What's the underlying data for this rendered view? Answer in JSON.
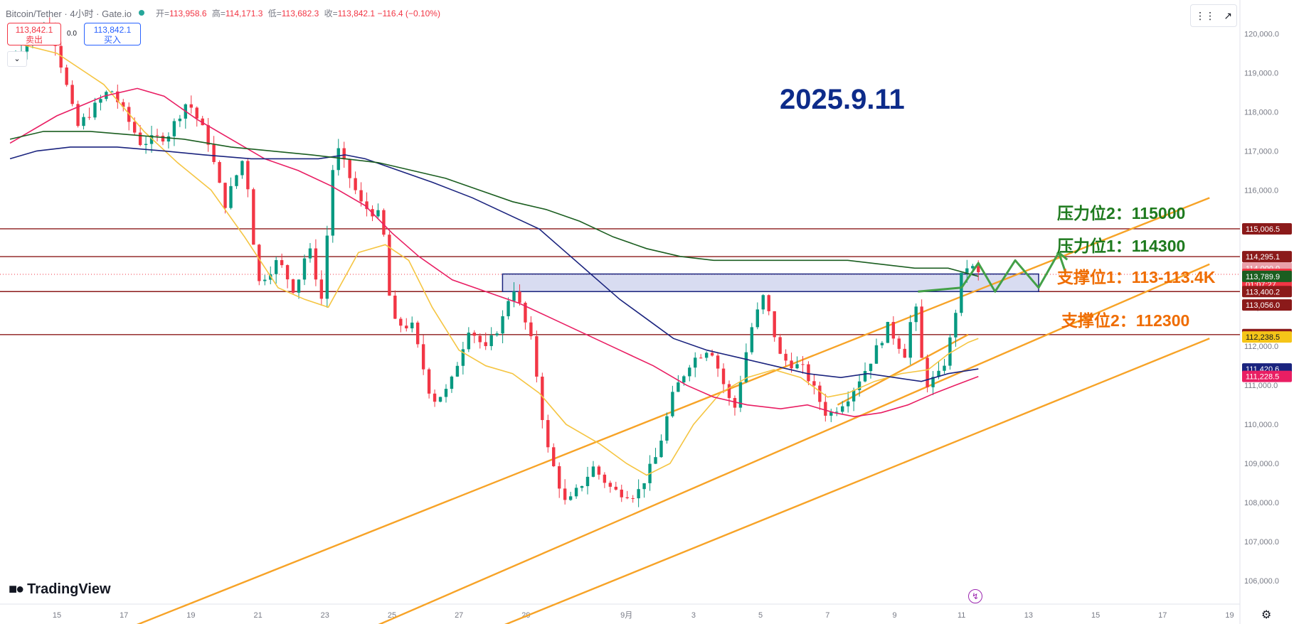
{
  "header": {
    "symbol": "Bitcoin/Tether · 4小时 · Gate.io",
    "open_label": "开=",
    "open": "113,958.6",
    "high_label": "高=",
    "high": "114,171.3",
    "low_label": "低=",
    "low": "113,682.3",
    "close_label": "收=",
    "close": "113,842.1",
    "change": "−116.4 (−0.10%)"
  },
  "trade": {
    "sell_price": "113,842.1",
    "sell_label": "卖出",
    "spread": "0.0",
    "buy_price": "113,842.1",
    "buy_label": "买入",
    "collapse_icon": "chevron-down-icon"
  },
  "toolbar": {
    "icons": [
      "indicator-drag-icon",
      "trend-arrow-icon"
    ]
  },
  "branding": {
    "logo_text": "TradingView"
  },
  "chart_data": {
    "type": "candlestick",
    "title": "2025.9.11",
    "y_axis": {
      "min": 105400,
      "max": 120500,
      "ticks": [
        "106,000.0",
        "107,000.0",
        "108,000.0",
        "109,000.0",
        "110,000.0",
        "111,000.0",
        "112,000.0",
        "113,000.0",
        "114,000.0",
        "115,000.0",
        "116,000.0",
        "117,000.0",
        "118,000.0",
        "119,000.0",
        "120,000.0"
      ]
    },
    "x_axis": {
      "labels": [
        {
          "text": "15",
          "day": 15
        },
        {
          "text": "17",
          "day": 17
        },
        {
          "text": "19",
          "day": 19
        },
        {
          "text": "21",
          "day": 21
        },
        {
          "text": "23",
          "day": 23
        },
        {
          "text": "25",
          "day": 25
        },
        {
          "text": "27",
          "day": 27
        },
        {
          "text": "29",
          "day": 29
        },
        {
          "text": "9月",
          "day": 32
        },
        {
          "text": "3",
          "day": 34
        },
        {
          "text": "5",
          "day": 36
        },
        {
          "text": "7",
          "day": 38
        },
        {
          "text": "9",
          "day": 40
        },
        {
          "text": "11",
          "day": 42
        },
        {
          "text": "13",
          "day": 44
        },
        {
          "text": "15",
          "day": 46
        },
        {
          "text": "17",
          "day": 48
        },
        {
          "text": "19",
          "day": 50
        }
      ]
    },
    "price_anchors": [
      [
        13.6,
        119400
      ],
      [
        14.8,
        120300
      ],
      [
        15.6,
        117600
      ],
      [
        16.6,
        118600
      ],
      [
        17.5,
        117200
      ],
      [
        18.3,
        117400
      ],
      [
        18.9,
        118300
      ],
      [
        19.5,
        117300
      ],
      [
        20.0,
        115600
      ],
      [
        20.6,
        116900
      ],
      [
        21.0,
        113600
      ],
      [
        21.6,
        114200
      ],
      [
        22.1,
        113400
      ],
      [
        22.5,
        114600
      ],
      [
        22.9,
        113200
      ],
      [
        23.3,
        117200
      ],
      [
        24.1,
        115600
      ],
      [
        24.7,
        115300
      ],
      [
        25.0,
        112600
      ],
      [
        25.6,
        112500
      ],
      [
        26.2,
        110600
      ],
      [
        26.7,
        110900
      ],
      [
        27.3,
        112500
      ],
      [
        27.8,
        111900
      ],
      [
        28.3,
        112700
      ],
      [
        28.6,
        113600
      ],
      [
        29.2,
        112000
      ],
      [
        29.6,
        109500
      ],
      [
        30.2,
        107900
      ],
      [
        31.0,
        108900
      ],
      [
        31.6,
        108300
      ],
      [
        32.3,
        108200
      ],
      [
        32.9,
        109200
      ],
      [
        33.4,
        110800
      ],
      [
        33.9,
        111600
      ],
      [
        34.5,
        112000
      ],
      [
        35.2,
        110300
      ],
      [
        35.7,
        112400
      ],
      [
        36.1,
        113300
      ],
      [
        36.6,
        111700
      ],
      [
        37.3,
        111400
      ],
      [
        38.0,
        110200
      ],
      [
        38.6,
        110700
      ],
      [
        39.2,
        111500
      ],
      [
        39.8,
        112500
      ],
      [
        40.3,
        111800
      ],
      [
        40.6,
        113200
      ],
      [
        40.9,
        111000
      ],
      [
        41.4,
        111300
      ],
      [
        41.7,
        112300
      ],
      [
        42.0,
        113800
      ],
      [
        42.2,
        114100
      ],
      [
        42.5,
        113842
      ]
    ],
    "candle_count": 172,
    "series": [
      {
        "color": "#f5c542",
        "pts": [
          [
            13.6,
            119800
          ],
          [
            15.0,
            119500
          ],
          [
            16.4,
            118700
          ],
          [
            17.6,
            117500
          ],
          [
            18.6,
            116700
          ],
          [
            19.6,
            116000
          ],
          [
            20.6,
            114800
          ],
          [
            21.6,
            113500
          ],
          [
            22.4,
            113200
          ],
          [
            23.1,
            113000
          ],
          [
            24.0,
            114400
          ],
          [
            24.8,
            114600
          ],
          [
            25.5,
            114200
          ],
          [
            26.2,
            113000
          ],
          [
            27.0,
            111900
          ],
          [
            27.8,
            111500
          ],
          [
            28.6,
            111300
          ],
          [
            29.4,
            110800
          ],
          [
            30.2,
            110000
          ],
          [
            31.2,
            109500
          ],
          [
            32.0,
            109000
          ],
          [
            32.6,
            108700
          ],
          [
            33.3,
            109000
          ],
          [
            34.0,
            110000
          ],
          [
            34.8,
            110800
          ],
          [
            35.6,
            111200
          ],
          [
            36.4,
            111400
          ],
          [
            37.2,
            111200
          ],
          [
            38.0,
            110700
          ],
          [
            38.6,
            110800
          ],
          [
            39.4,
            111100
          ],
          [
            40.2,
            111300
          ],
          [
            41.0,
            111400
          ],
          [
            41.6,
            111800
          ],
          [
            42.2,
            112100
          ],
          [
            42.5,
            112200
          ]
        ]
      },
      {
        "color": "#e91e63",
        "pts": [
          [
            13.6,
            117200
          ],
          [
            15.0,
            117900
          ],
          [
            16.4,
            118400
          ],
          [
            17.4,
            118600
          ],
          [
            18.2,
            118400
          ],
          [
            19.2,
            117800
          ],
          [
            20.2,
            117300
          ],
          [
            21.2,
            116800
          ],
          [
            22.2,
            116500
          ],
          [
            23.2,
            116100
          ],
          [
            24.2,
            115600
          ],
          [
            25.0,
            114900
          ],
          [
            25.8,
            114300
          ],
          [
            26.8,
            113700
          ],
          [
            27.8,
            113400
          ],
          [
            28.8,
            113100
          ],
          [
            29.8,
            112700
          ],
          [
            30.8,
            112300
          ],
          [
            31.8,
            111900
          ],
          [
            32.8,
            111500
          ],
          [
            33.8,
            111000
          ],
          [
            34.6,
            110700
          ],
          [
            35.6,
            110500
          ],
          [
            36.6,
            110400
          ],
          [
            37.4,
            110500
          ],
          [
            38.2,
            110300
          ],
          [
            38.8,
            110200
          ],
          [
            39.6,
            110300
          ],
          [
            40.4,
            110500
          ],
          [
            41.2,
            110800
          ],
          [
            41.8,
            111000
          ],
          [
            42.5,
            111228
          ]
        ]
      },
      {
        "color": "#1a237e",
        "pts": [
          [
            13.6,
            116800
          ],
          [
            14.4,
            117000
          ],
          [
            15.4,
            117100
          ],
          [
            16.8,
            117100
          ],
          [
            18.2,
            117000
          ],
          [
            19.4,
            116900
          ],
          [
            20.8,
            116800
          ],
          [
            22.0,
            116800
          ],
          [
            22.8,
            116800
          ],
          [
            23.6,
            116900
          ],
          [
            24.2,
            116800
          ],
          [
            25.2,
            116500
          ],
          [
            26.2,
            116200
          ],
          [
            27.4,
            115800
          ],
          [
            28.4,
            115400
          ],
          [
            29.4,
            115000
          ],
          [
            30.2,
            114400
          ],
          [
            31.0,
            113800
          ],
          [
            31.8,
            113200
          ],
          [
            32.6,
            112700
          ],
          [
            33.4,
            112200
          ],
          [
            34.4,
            111900
          ],
          [
            35.4,
            111700
          ],
          [
            36.4,
            111500
          ],
          [
            37.4,
            111300
          ],
          [
            38.4,
            111200
          ],
          [
            39.2,
            111300
          ],
          [
            40.0,
            111200
          ],
          [
            40.8,
            111100
          ],
          [
            41.6,
            111300
          ],
          [
            42.5,
            111420
          ]
        ]
      },
      {
        "color": "#1b5e20",
        "pts": [
          [
            13.6,
            117300
          ],
          [
            14.6,
            117500
          ],
          [
            16.0,
            117500
          ],
          [
            17.4,
            117400
          ],
          [
            18.8,
            117300
          ],
          [
            20.2,
            117100
          ],
          [
            21.4,
            117000
          ],
          [
            22.6,
            116900
          ],
          [
            23.6,
            116800
          ],
          [
            24.6,
            116700
          ],
          [
            25.6,
            116500
          ],
          [
            26.6,
            116300
          ],
          [
            27.6,
            116000
          ],
          [
            28.6,
            115700
          ],
          [
            29.6,
            115500
          ],
          [
            30.6,
            115200
          ],
          [
            31.6,
            114800
          ],
          [
            32.6,
            114500
          ],
          [
            33.6,
            114300
          ],
          [
            34.6,
            114200
          ],
          [
            35.6,
            114200
          ],
          [
            36.6,
            114200
          ],
          [
            37.6,
            114200
          ],
          [
            38.6,
            114200
          ],
          [
            39.6,
            114100
          ],
          [
            40.6,
            114000
          ],
          [
            41.6,
            114000
          ],
          [
            42.5,
            113790
          ]
        ]
      }
    ],
    "zone": {
      "x0": 28.3,
      "x1": 44.3,
      "y0": 113400,
      "y1": 113850
    },
    "projection": [
      [
        42.0,
        113500
      ],
      [
        42.5,
        114130
      ],
      [
        43.0,
        113400
      ],
      [
        43.6,
        114200
      ],
      [
        44.3,
        113500
      ],
      [
        44.9,
        114400
      ],
      [
        45.1,
        113900
      ]
    ],
    "projection_anchor": [
      40.7,
      113400
    ],
    "horizontal_lines": [
      115006.5,
      114295.1,
      113400.2,
      112298.8
    ],
    "channels": [
      [
        [
          16.3,
          104500
        ],
        [
          49.4,
          115800
        ]
      ],
      [
        [
          23.6,
          104500
        ],
        [
          49.4,
          114100
        ]
      ],
      [
        [
          27.3,
          104500
        ],
        [
          49.4,
          112200
        ]
      ],
      [
        [
          38.3,
          110500
        ],
        [
          42.2,
          112300
        ]
      ]
    ],
    "price_tags": [
      {
        "text": "115,006.5",
        "value": 115006.5,
        "bg": "#8b1a1a"
      },
      {
        "text": "114,295.1",
        "value": 114295.1,
        "bg": "#8b1a1a"
      },
      {
        "text": "114,000.0",
        "value": 114000,
        "bg": "#e9a0aa"
      },
      {
        "text": "113,842.1",
        "value": 113842.1,
        "bg": "#f23645",
        "sub": "01:07:27"
      },
      {
        "text": "113,789.9",
        "value": 113789.9,
        "bg": "#1b5e20"
      },
      {
        "text": "113,400.2",
        "value": 113400.2,
        "bg": "#8b1a1a"
      },
      {
        "text": "113,056.0",
        "value": 113056,
        "bg": "#8b1a1a"
      },
      {
        "text": "112,298.8",
        "value": 112298.8,
        "bg": "#8b1a1a"
      },
      {
        "text": "112,238.5",
        "value": 112238.5,
        "bg": "#f5c518",
        "fg": "#131722"
      },
      {
        "text": "111,420.6",
        "value": 111420.6,
        "bg": "#1a237e"
      },
      {
        "text": "111,228.5",
        "value": 111228.5,
        "bg": "#e91e63"
      }
    ]
  },
  "annotations": {
    "resistance2": "压力位2：115000",
    "resistance1": "压力位1：114300",
    "support1": "支撑位1：113-113.4K",
    "support2": "支撑位2：112300"
  }
}
